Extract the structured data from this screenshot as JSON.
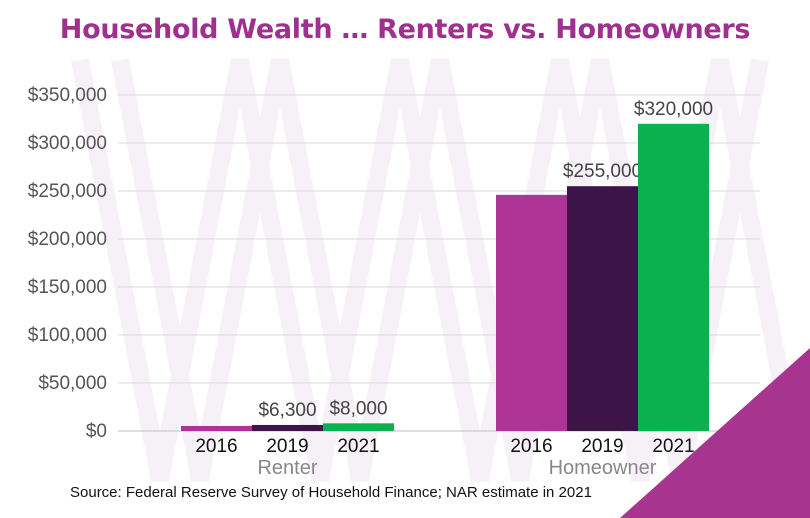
{
  "title": "Household Wealth … Renters vs. Homeowners",
  "source": "Source: Federal Reserve Survey of Household Finance; NAR estimate in 2021",
  "colors": {
    "title": "#a0308f",
    "s2016": "#ad3394",
    "s2019": "#3d1447",
    "s2021": "#0bb14f",
    "corner": "#a7358f",
    "axis_text": "#555555",
    "grid": "#d9d9d9"
  },
  "chart_data": {
    "type": "bar",
    "title": "Household Wealth … Renters vs. Homeowners",
    "categories": [
      "Renter",
      "Homeowner"
    ],
    "series": [
      {
        "name": "2016",
        "values": [
          5200,
          246000
        ]
      },
      {
        "name": "2019",
        "values": [
          6300,
          255000
        ]
      },
      {
        "name": "2021",
        "values": [
          8000,
          320000
        ]
      }
    ],
    "data_labels": [
      [
        "",
        ""
      ],
      [
        "$6,300",
        "$255,000"
      ],
      [
        "$8,000",
        "$320,000"
      ]
    ],
    "yticks": [
      0,
      50000,
      100000,
      150000,
      200000,
      250000,
      300000,
      350000
    ],
    "ytick_labels": [
      "$0",
      "$50,000",
      "$100,000",
      "$150,000",
      "$200,000",
      "$250,000",
      "$300,000",
      "$350,000"
    ],
    "ylim": [
      0,
      350000
    ],
    "xlabel": "",
    "ylabel": "",
    "grid": true,
    "legend": "none"
  }
}
